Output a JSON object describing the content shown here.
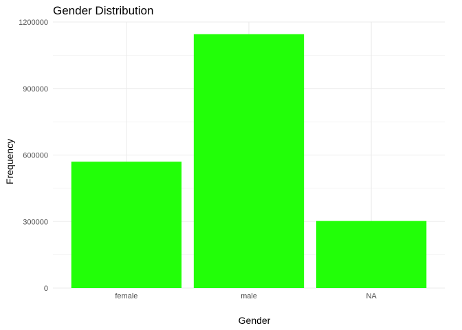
{
  "chart_data": {
    "type": "bar",
    "title": "Gender Distribution",
    "xlabel": "Gender",
    "ylabel": "Frequency",
    "categories": [
      "female",
      "male",
      "NA"
    ],
    "values": [
      570000,
      1145000,
      303000
    ],
    "ylim": [
      0,
      1200000
    ],
    "yticks": [
      0,
      300000,
      600000,
      900000,
      1200000
    ],
    "ytick_labels": [
      "0",
      "300000",
      "600000",
      "900000",
      "1200000"
    ],
    "grid": true,
    "bar_color": "#22FF08",
    "grid_color": "#EBEBEB"
  }
}
